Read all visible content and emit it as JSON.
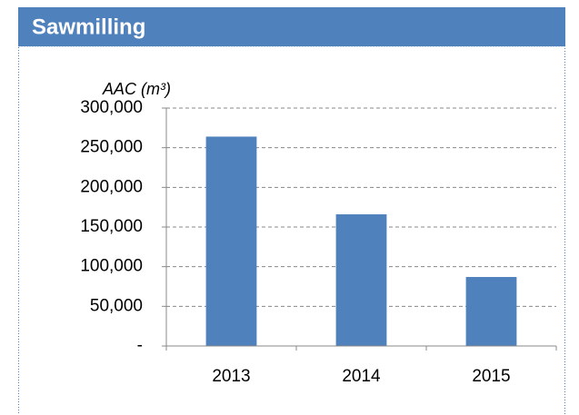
{
  "chart_data": {
    "type": "bar",
    "title": "Sawmilling",
    "y_label": "AAC (m³)",
    "categories": [
      "2013",
      "2014",
      "2015"
    ],
    "values": [
      264000,
      166000,
      87000
    ],
    "color": "#4f81bd",
    "ylim": [
      0,
      300000
    ],
    "yticks": [
      {
        "value": 0,
        "label": "-"
      },
      {
        "value": 50000,
        "label": "50,000"
      },
      {
        "value": 100000,
        "label": "100,000"
      },
      {
        "value": 150000,
        "label": "150,000"
      },
      {
        "value": 200000,
        "label": "200,000"
      },
      {
        "value": 250000,
        "label": "250,000"
      },
      {
        "value": 300000,
        "label": "300,000"
      }
    ],
    "grid": true
  }
}
